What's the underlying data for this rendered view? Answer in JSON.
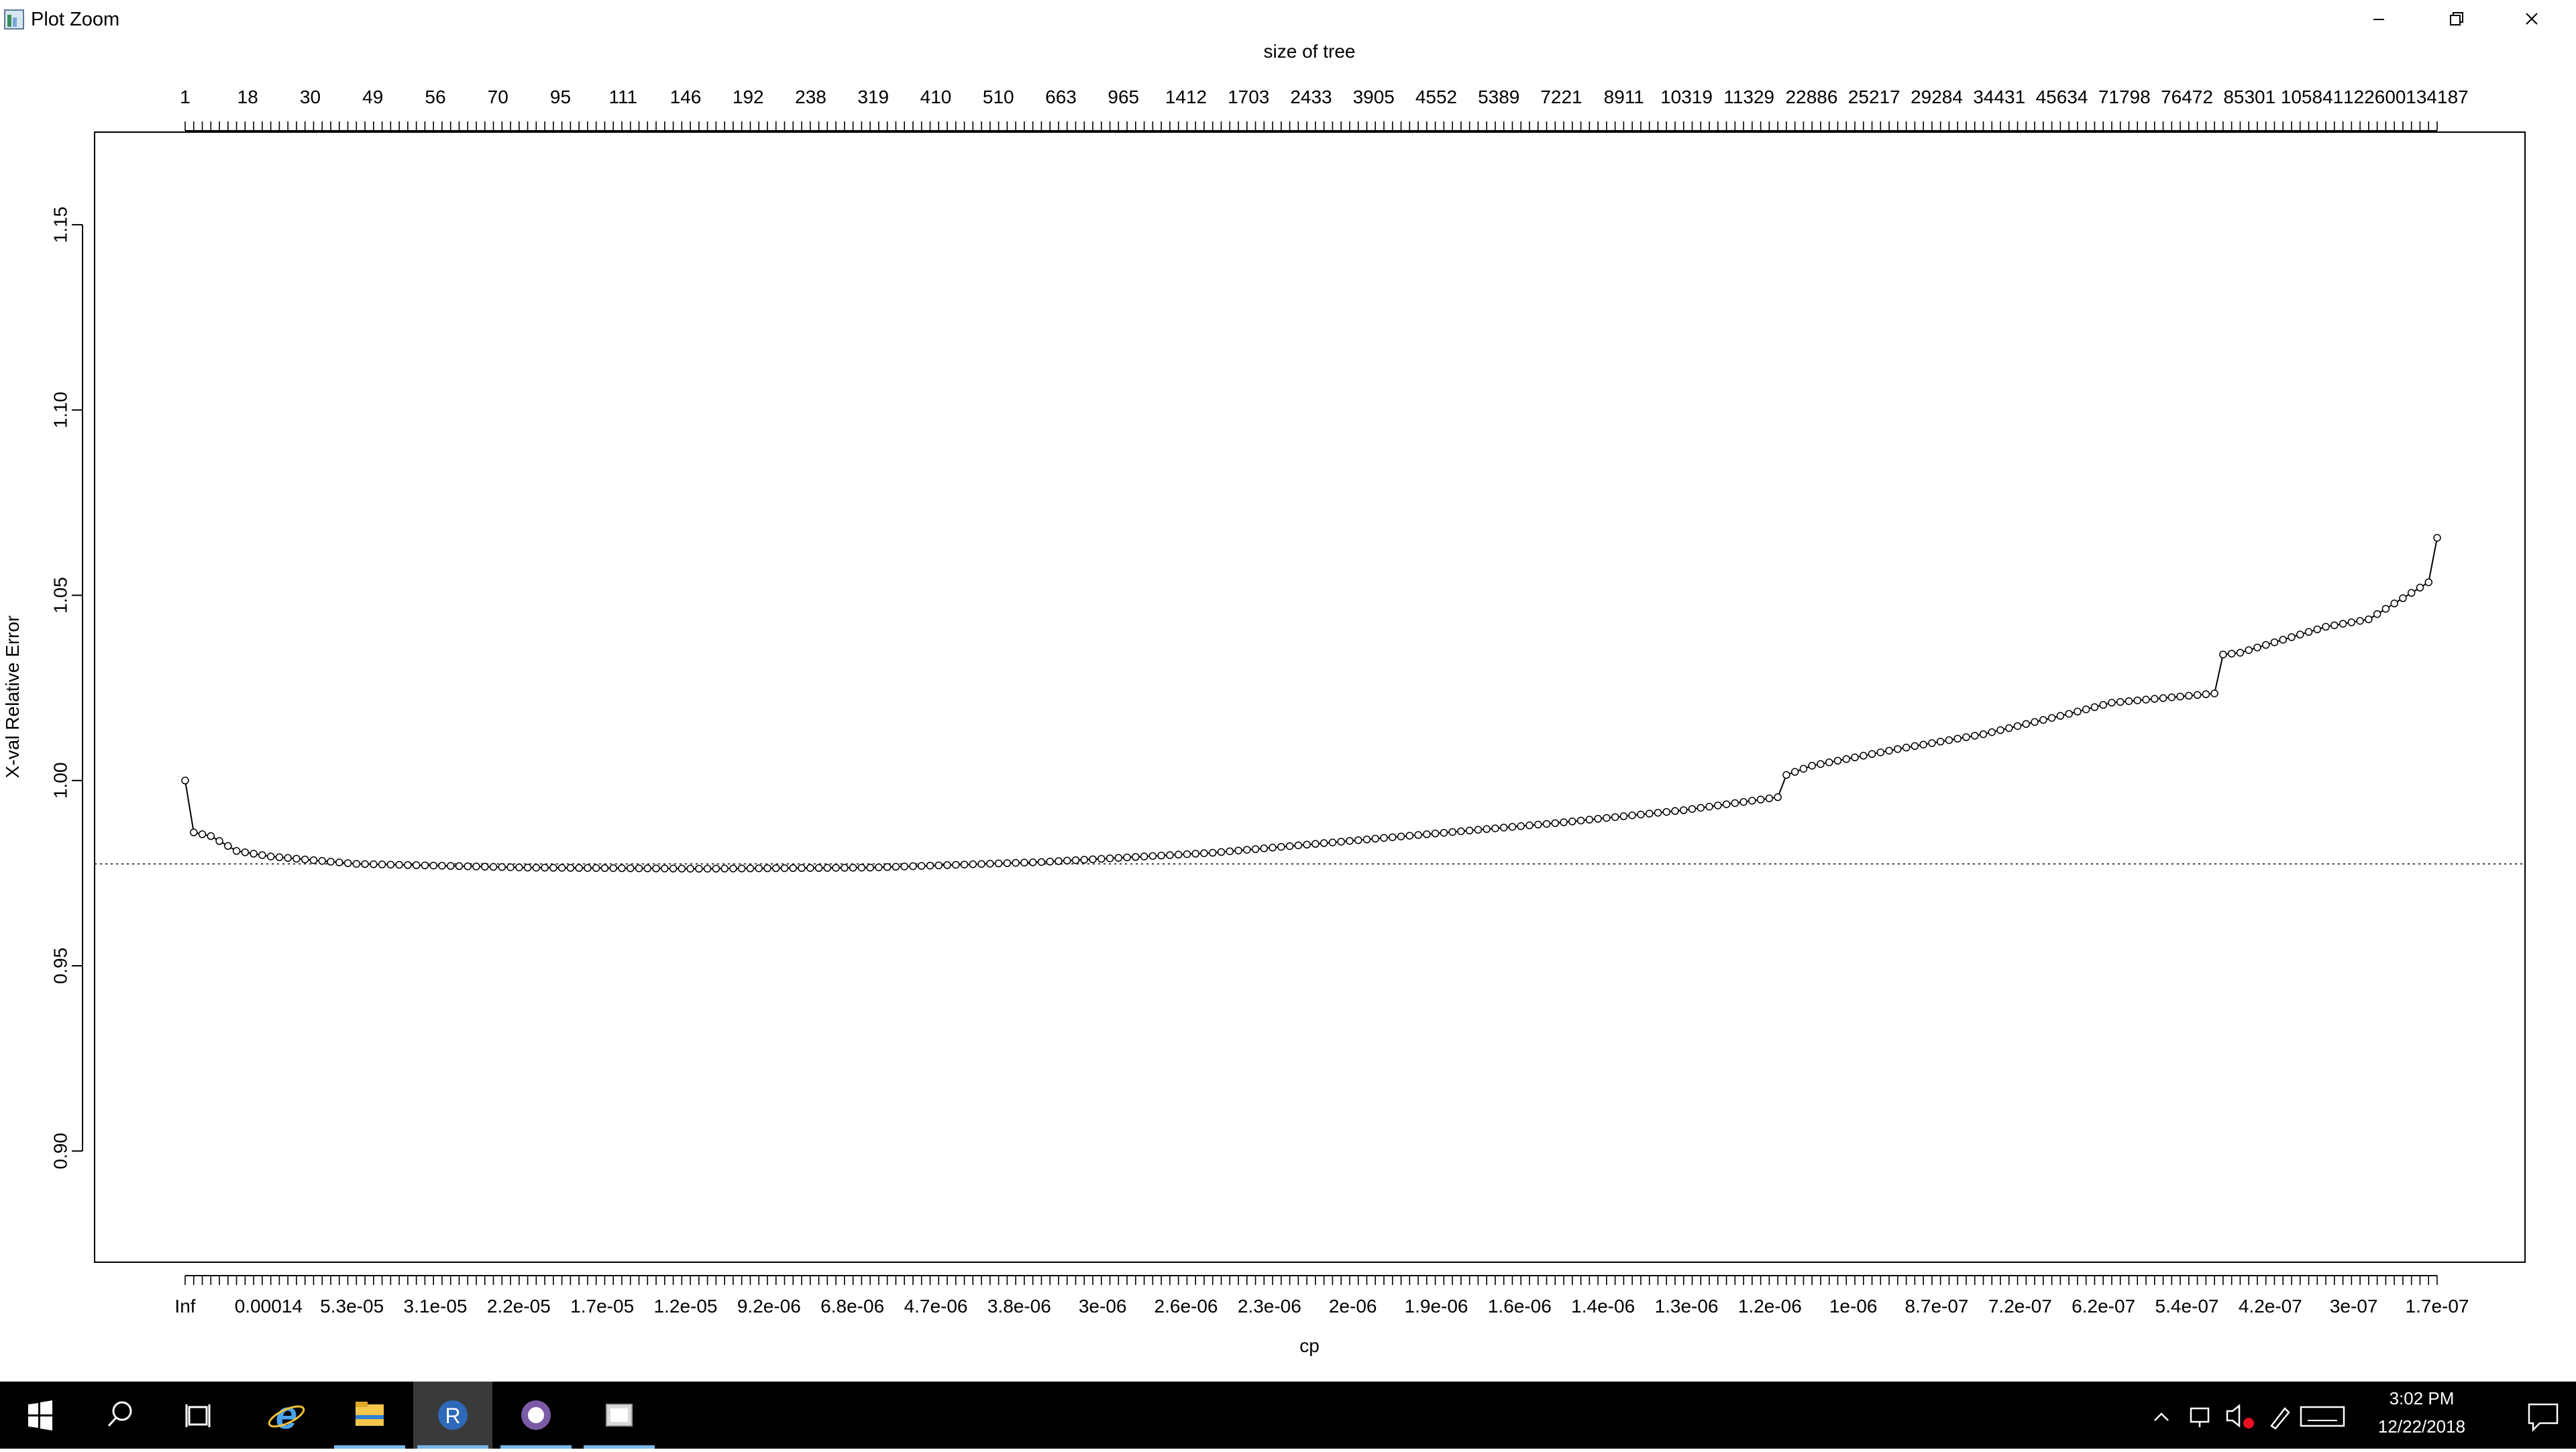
{
  "window": {
    "title": "Plot Zoom"
  },
  "chart_data": {
    "type": "line",
    "title": "",
    "top_axis_label": "size of tree",
    "xlabel": "cp",
    "ylabel": "X-val Relative Error",
    "n_points": 264,
    "ylim": [
      0.87,
      1.175
    ],
    "yticks": [
      "0.90",
      "0.95",
      "1.00",
      "1.05",
      "1.10",
      "1.15"
    ],
    "reference_line": 0.9775,
    "reference_line_style": "dotted",
    "x_tick_labels": [
      "Inf",
      "0.00014",
      "5.3e-05",
      "3.1e-05",
      "2.2e-05",
      "1.7e-05",
      "1.2e-05",
      "9.2e-06",
      "6.8e-06",
      "4.7e-06",
      "3.8e-06",
      "3e-06",
      "2.6e-06",
      "2.3e-06",
      "2e-06",
      "1.9e-06",
      "1.6e-06",
      "1.4e-06",
      "1.3e-06",
      "1.2e-06",
      "1e-06",
      "8.7e-07",
      "7.2e-07",
      "6.2e-07",
      "5.4e-07",
      "4.2e-07",
      "3e-07",
      "1.7e-07"
    ],
    "top_tick_labels": [
      "1",
      "18",
      "30",
      "49",
      "56",
      "70",
      "95",
      "111",
      "146",
      "192",
      "238",
      "319",
      "410",
      "510",
      "663",
      "965",
      "1412",
      "1703",
      "2433",
      "3905",
      "4552",
      "5389",
      "7221",
      "8911",
      "10319",
      "11329",
      "22886",
      "25217",
      "29284",
      "34431",
      "45634",
      "71798",
      "76472",
      "85301",
      "105841",
      "122600",
      "134187"
    ],
    "profile_index": [
      0,
      1,
      3,
      6,
      10,
      20,
      40,
      60,
      80,
      100,
      120,
      140,
      160,
      175,
      186,
      187,
      190,
      200,
      210,
      220,
      225,
      237,
      238,
      240,
      250,
      255,
      262,
      263
    ],
    "profile_value": [
      1.0,
      0.986,
      0.985,
      0.981,
      0.9795,
      0.9775,
      0.9765,
      0.9762,
      0.9765,
      0.978,
      0.9805,
      0.9845,
      0.9885,
      0.992,
      0.9955,
      1.0015,
      1.004,
      1.0085,
      1.0125,
      1.018,
      1.021,
      1.0235,
      1.034,
      1.0345,
      1.0415,
      1.0435,
      1.0535,
      1.0655
    ],
    "grid": false,
    "legend": "none"
  },
  "taskbar": {
    "items": [
      "start-icon",
      "search-icon",
      "task-view-icon",
      "internet-explorer-icon",
      "file-explorer-icon",
      "r-gui-icon",
      "github-icon",
      "app-window-icon"
    ],
    "clock_time": "3:02 PM",
    "clock_date": "12/22/2018"
  }
}
